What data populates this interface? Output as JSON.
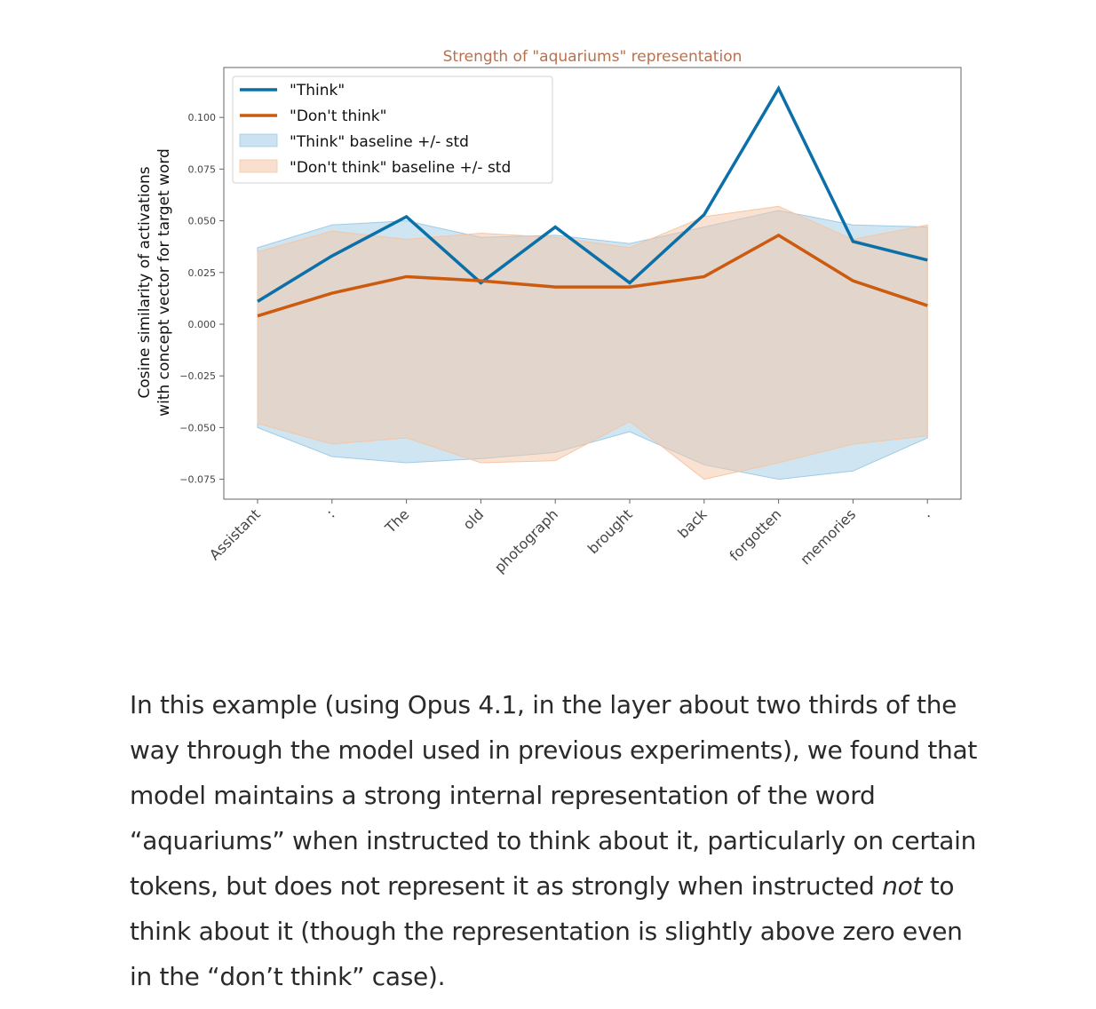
{
  "chart_data": {
    "type": "line",
    "title": "Strength of \"aquariums\" representation",
    "ylabel_lines": [
      "Cosine similarity of activations",
      "with concept vector for target word"
    ],
    "xlabel": "",
    "categories": [
      "Assistant",
      ":",
      "The",
      "old",
      "photograph",
      "brought",
      "back",
      "forgotten",
      "memories",
      "."
    ],
    "ylim": [
      -0.08,
      0.12
    ],
    "yticks": [
      -0.075,
      -0.05,
      -0.025,
      0.0,
      0.025,
      0.05,
      0.075,
      0.1
    ],
    "ytick_labels": [
      "−0.075",
      "−0.050",
      "−0.025",
      "0.000",
      "0.025",
      "0.050",
      "0.075",
      "0.100"
    ],
    "grid": false,
    "legend_position": "top-left",
    "series": [
      {
        "name": "\"Think\"",
        "kind": "line",
        "color": "#0b6fa8",
        "values": [
          0.011,
          0.033,
          0.052,
          0.02,
          0.047,
          0.02,
          0.053,
          0.114,
          0.04,
          0.031
        ]
      },
      {
        "name": "\"Don't think\"",
        "kind": "line",
        "color": "#cc5a0f",
        "values": [
          0.004,
          0.015,
          0.023,
          0.021,
          0.018,
          0.018,
          0.023,
          0.043,
          0.021,
          0.009
        ]
      }
    ],
    "bands": [
      {
        "name": "\"Think\" baseline +/- std",
        "color": "#9fcbe6",
        "upper": [
          0.037,
          0.048,
          0.05,
          0.042,
          0.043,
          0.039,
          0.047,
          0.055,
          0.048,
          0.047
        ],
        "lower": [
          -0.05,
          -0.064,
          -0.067,
          -0.065,
          -0.062,
          -0.052,
          -0.068,
          -0.075,
          -0.071,
          -0.055
        ]
      },
      {
        "name": "\"Don't think\" baseline +/- std",
        "color": "#f4c6a6",
        "upper": [
          0.035,
          0.045,
          0.041,
          0.044,
          0.042,
          0.037,
          0.052,
          0.057,
          0.041,
          0.048
        ],
        "lower": [
          -0.048,
          -0.058,
          -0.055,
          -0.067,
          -0.066,
          -0.047,
          -0.075,
          -0.067,
          -0.058,
          -0.054
        ]
      }
    ]
  },
  "paragraph": {
    "part1": "In this example (using Opus 4.1, in the layer about two thirds of the way through the model used in previous experiments), we found that model maintains a strong internal representation of the word “aquariums” when instructed to think about it, particularly on certain tokens, but does not represent it as strongly when instructed ",
    "emphasis": "not",
    "part2": " to think about it (though the representation is slightly above zero even in the “don’t think” case)."
  }
}
